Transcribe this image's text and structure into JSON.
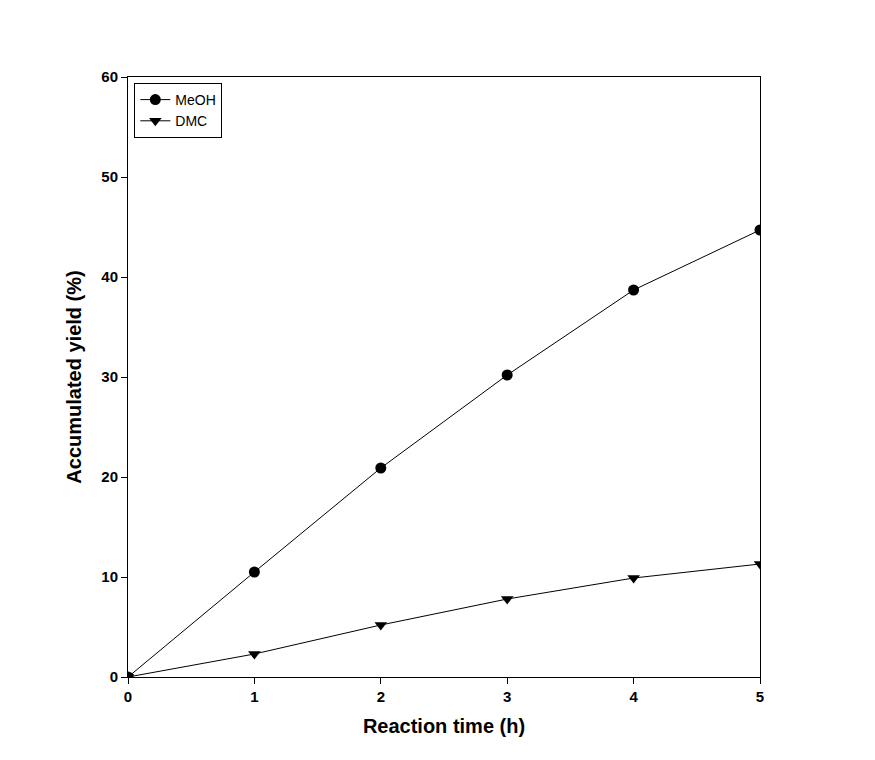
{
  "chart_data": {
    "type": "line",
    "xlabel": "Reaction time (h)",
    "ylabel": "Accumulated yield (%)",
    "x": [
      0,
      1,
      2,
      3,
      4,
      5
    ],
    "series": [
      {
        "name": "MeOH",
        "color": "#000000",
        "marker": "circle",
        "line_style": "solid",
        "values": [
          0,
          10.5,
          20.9,
          30.2,
          38.7,
          44.7
        ]
      },
      {
        "name": "DMC",
        "color": "#000000",
        "marker": "triangle-down",
        "line_style": "solid",
        "values": [
          0,
          2.3,
          5.2,
          7.8,
          9.9,
          11.3
        ]
      }
    ],
    "xlim": [
      0,
      5
    ],
    "xticks": [
      0,
      1,
      2,
      3,
      4,
      5
    ],
    "ylim": [
      0,
      60
    ],
    "yticks": [
      0,
      10,
      20,
      30,
      40,
      50,
      60
    ],
    "grid": false,
    "legend": "upper left"
  }
}
